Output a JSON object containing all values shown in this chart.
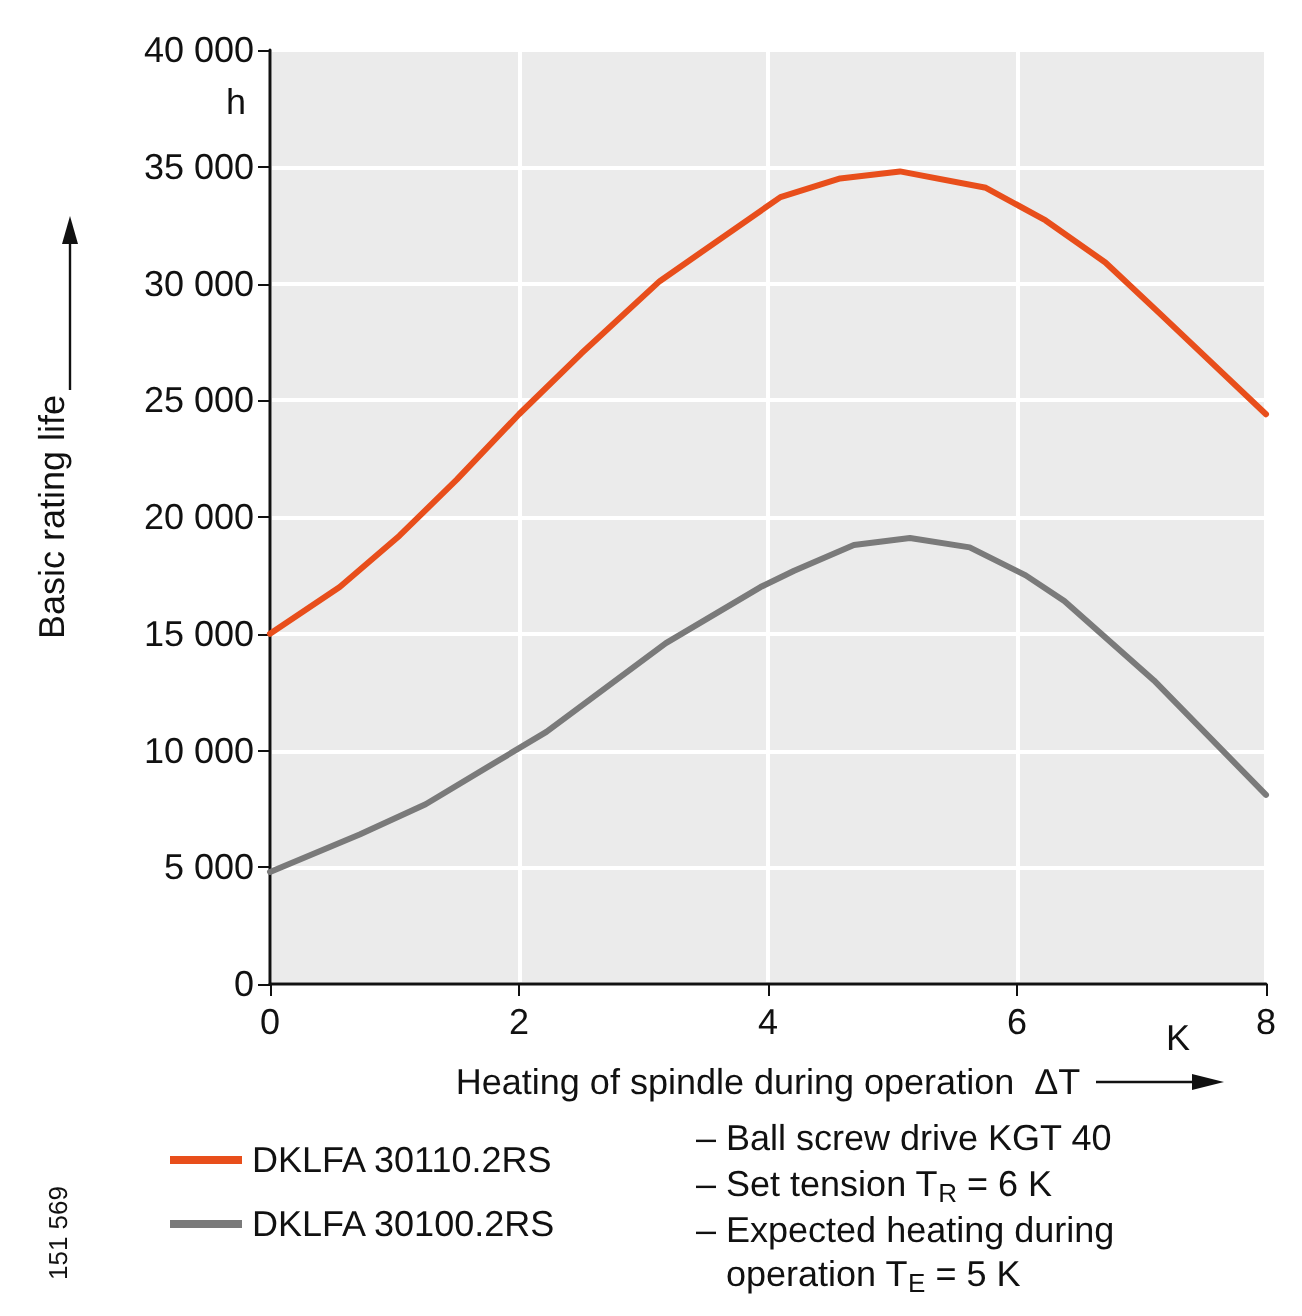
{
  "chart_data": {
    "type": "line",
    "xlabel": "Heating of spindle during operation  ΔT",
    "ylabel": "Basic rating life",
    "x": [
      0,
      0.56,
      1.04,
      1.5,
      2.0,
      2.5,
      3.13,
      4.1,
      4.58,
      5.06,
      5.75,
      6.23,
      6.71,
      7.15,
      8
    ],
    "series": [
      {
        "name": "DKLFA 30110.2RS",
        "color": "#e84e1b",
        "values": [
          15000,
          17000,
          19200,
          21600,
          24400,
          27000,
          30100,
          33700,
          34500,
          34800,
          34100,
          32700,
          30900,
          28700,
          24400
        ]
      },
      {
        "name": "DKLFA 30100.2RS",
        "color": "#7a7a7a",
        "x": [
          0,
          0.72,
          1.25,
          2.22,
          3.18,
          3.94,
          4.21,
          4.69,
          5.14,
          5.62,
          6.07,
          6.38,
          7.1,
          8
        ],
        "values": [
          4800,
          6400,
          7700,
          10800,
          14600,
          17000,
          17700,
          18800,
          19100,
          18700,
          17500,
          16400,
          13000,
          8100
        ]
      }
    ],
    "xlim": [
      0,
      8
    ],
    "xticks": [
      0,
      2,
      4,
      6,
      8
    ],
    "ylim": [
      0,
      40000
    ],
    "yticks": [
      {
        "value": 0,
        "label": "0"
      },
      {
        "value": 5000,
        "label": "5 000"
      },
      {
        "value": 10000,
        "label": "10 000"
      },
      {
        "value": 15000,
        "label": "15 000"
      },
      {
        "value": 20000,
        "label": "20 000"
      },
      {
        "value": 25000,
        "label": "25 000"
      },
      {
        "value": 30000,
        "label": "30 000"
      },
      {
        "value": 35000,
        "label": "35 000"
      },
      {
        "value": 40000,
        "label": "40 000"
      }
    ],
    "annotations": [
      "h",
      "K",
      "– Ball screw drive KGT 40",
      "– Set tension T$_{R}$ = 6 K",
      "– Expected heating during\n   operation T$_{E}$ = 5 K",
      "151 569"
    ],
    "grid": true,
    "legend": "bottom left",
    "marker": "none",
    "line_style": "solid"
  }
}
